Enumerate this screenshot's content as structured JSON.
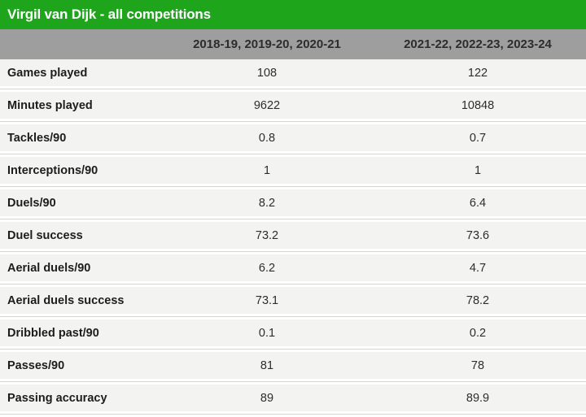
{
  "header": {
    "title": "Virgil van Dijk - all competitions"
  },
  "colors": {
    "accent_green": "#1ea51c",
    "header_gray": "#9e9e9e",
    "row_background": "#f3f3f1",
    "separator_line": "#d4d4d4",
    "title_text": "#ffffff",
    "header_text": "#ffffff",
    "label_text": "#1d1d1d",
    "value_text": "#2d2d2d"
  },
  "chart_data": {
    "type": "table",
    "title": "Virgil van Dijk - all competitions",
    "categories": [
      "Games played",
      "Minutes played",
      "Tackles/90",
      "Interceptions/90",
      "Duels/90",
      "Duel success",
      "Aerial duels/90",
      "Aerial duels success",
      "Dribbled past/90",
      "Passes/90",
      "Passing accuracy"
    ],
    "series": [
      {
        "name": "2018-19, 2019-20, 2020-21",
        "values": [
          108,
          9622,
          0.8,
          1,
          8.2,
          73.2,
          6.2,
          73.1,
          0.1,
          81,
          89
        ]
      },
      {
        "name": "2021-22, 2022-23, 2023-24",
        "values": [
          122,
          10848,
          0.7,
          1,
          6.4,
          73.6,
          4.7,
          78.2,
          0.2,
          78,
          89.9
        ]
      }
    ],
    "layout": {
      "legend_position": "column-headers",
      "grid": "horizontal-separators"
    }
  }
}
